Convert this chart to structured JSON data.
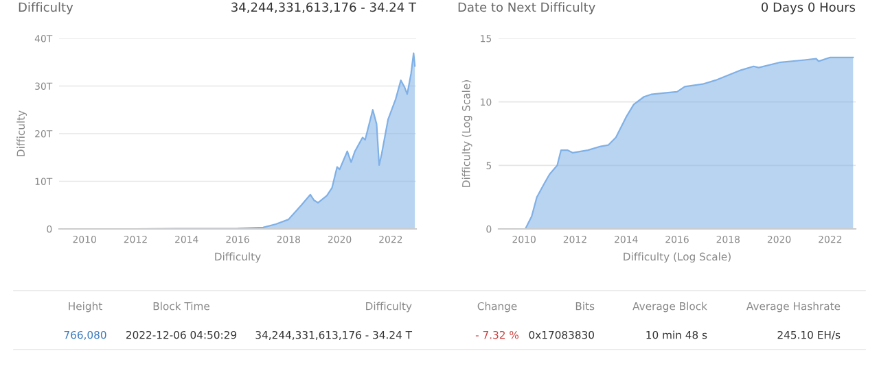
{
  "chart_data": [
    {
      "type": "area",
      "title": "Difficulty",
      "xlabel": "Difficulty",
      "ylabel": "Difficulty",
      "annotations": [
        "34,244,331,613,176 - 34.24 T"
      ],
      "x": [
        2009.0,
        2012.0,
        2016.0,
        2016.5,
        2017.0,
        2017.5,
        2018.0,
        2018.5,
        2018.85,
        2019.0,
        2019.15,
        2019.5,
        2019.7,
        2019.9,
        2020.0,
        2020.3,
        2020.45,
        2020.6,
        2020.9,
        2021.0,
        2021.3,
        2021.45,
        2021.55,
        2021.65,
        2021.9,
        2022.2,
        2022.4,
        2022.55,
        2022.65,
        2022.8,
        2022.9,
        2022.95
      ],
      "values": [
        0,
        0,
        0.1,
        0.2,
        0.3,
        1,
        2,
        5,
        7.2,
        6,
        5.5,
        7,
        8.6,
        13,
        12.5,
        16.3,
        14,
        16.3,
        19.2,
        18.7,
        25,
        22,
        13.4,
        15.8,
        23,
        27.3,
        31.2,
        29.7,
        28.3,
        32.6,
        36.9,
        34.2
      ],
      "color": "#7fb0e6",
      "xlim": [
        2009,
        2023
      ],
      "ylim": [
        0,
        40
      ],
      "xticks": [
        2010,
        2012,
        2014,
        2016,
        2018,
        2020,
        2022
      ],
      "yticks": [
        {
          "value": 0,
          "label": "0"
        },
        {
          "value": 10,
          "label": "10T"
        },
        {
          "value": 20,
          "label": "20T"
        },
        {
          "value": 30,
          "label": "30T"
        },
        {
          "value": 40,
          "label": "40T"
        }
      ],
      "grid": "y"
    },
    {
      "type": "area",
      "title": "Date to Next Difficulty",
      "xlabel": "Difficulty (Log Scale)",
      "ylabel": "Difficulty (Log Scale)",
      "annotations": [
        "0 Days 0 Hours"
      ],
      "x": [
        2009.0,
        2010.05,
        2010.3,
        2010.5,
        2010.8,
        2011.0,
        2011.3,
        2011.45,
        2011.7,
        2011.9,
        2012.5,
        2013.0,
        2013.3,
        2013.6,
        2014.0,
        2014.3,
        2014.7,
        2015.0,
        2015.5,
        2016.0,
        2016.3,
        2017.0,
        2017.5,
        2018.0,
        2018.5,
        2019.0,
        2019.2,
        2020.0,
        2021.0,
        2021.45,
        2021.55,
        2022.0,
        2022.9
      ],
      "values": [
        0,
        0,
        1.0,
        2.5,
        3.6,
        4.3,
        5.0,
        6.2,
        6.2,
        6.0,
        6.2,
        6.5,
        6.6,
        7.2,
        8.8,
        9.8,
        10.4,
        10.6,
        10.7,
        10.8,
        11.2,
        11.4,
        11.7,
        12.1,
        12.5,
        12.8,
        12.7,
        13.1,
        13.3,
        13.4,
        13.2,
        13.5,
        13.5
      ],
      "color": "#7fb0e6",
      "xlim": [
        2009,
        2023
      ],
      "ylim": [
        0,
        15
      ],
      "xticks": [
        2010,
        2012,
        2014,
        2016,
        2018,
        2020,
        2022
      ],
      "yticks": [
        0,
        5,
        10,
        15
      ],
      "grid": "y"
    },
    {
      "type": "other",
      "annotations": [
        "Height",
        "Block Time",
        "Difficulty",
        "Change",
        "Bits",
        "Average Block",
        "Average Hashrate",
        "766,080",
        "2022-12-06 04:50:29",
        "34,244,331,613,176 - 34.24 T",
        "- 7.32 %",
        "0x17083830",
        "10 min 48 s",
        "245.10 EH/s"
      ]
    }
  ]
}
